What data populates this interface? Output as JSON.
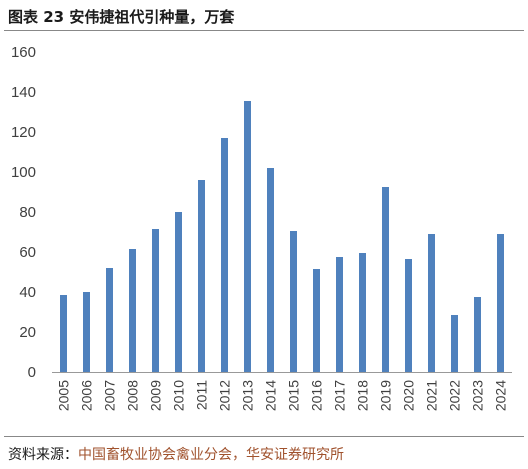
{
  "header": {
    "fig_label": "图表 23",
    "title": "安伟捷祖代引种量，万套"
  },
  "footer": {
    "source_prefix": "资料来源：",
    "source_orgs": "中国畜牧业协会禽业分会，华安证券研究所"
  },
  "colors": {
    "bar": "#4f81bd",
    "axis": "#999999",
    "text": "#404040"
  },
  "chart_data": {
    "type": "bar",
    "title": "安伟捷祖代引种量，万套",
    "categories": [
      "2005",
      "2006",
      "2007",
      "2008",
      "2009",
      "2010",
      "2011",
      "2012",
      "2013",
      "2014",
      "2015",
      "2016",
      "2017",
      "2018",
      "2019",
      "2020",
      "2021",
      "2022",
      "2023",
      "2024"
    ],
    "values": [
      38.5,
      40,
      52,
      61.5,
      71.5,
      80,
      96,
      117,
      135.5,
      102,
      70.5,
      51.5,
      57.5,
      59.5,
      92.5,
      56.5,
      69,
      28.5,
      37.5,
      69
    ],
    "yticks": [
      0,
      20,
      40,
      60,
      80,
      100,
      120,
      140,
      160
    ],
    "ylim": [
      0,
      160
    ],
    "xlabel": "",
    "ylabel": "",
    "grid": false,
    "legend": "none"
  }
}
